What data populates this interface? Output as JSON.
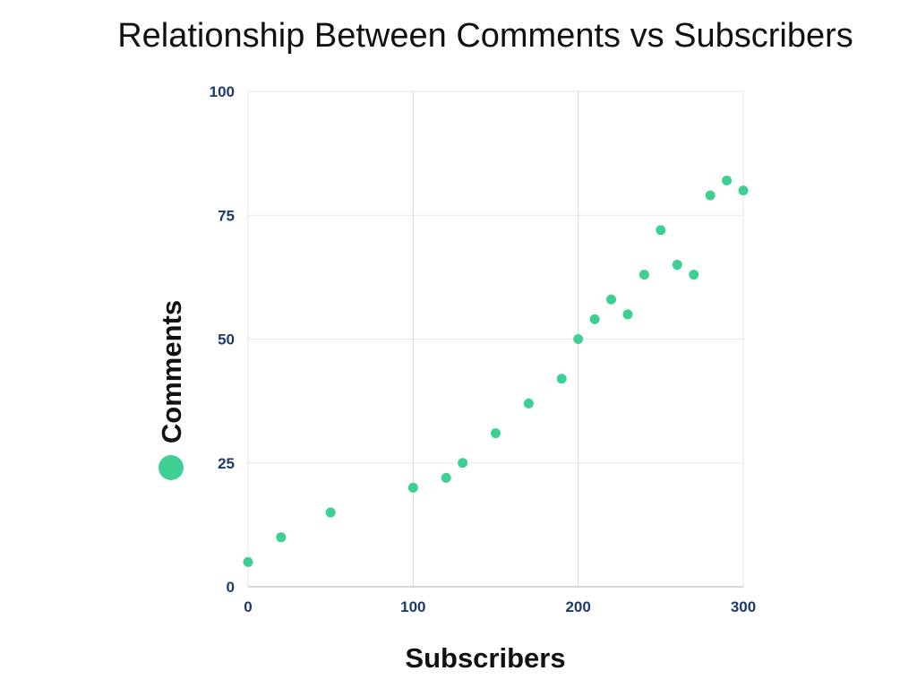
{
  "chart_data": {
    "type": "scatter",
    "title": "Relationship Between Comments vs Subscribers",
    "xlabel": "Subscribers",
    "ylabel": "Comments",
    "xlim": [
      0,
      300
    ],
    "ylim": [
      0,
      100
    ],
    "xticks": [
      "0",
      "100",
      "200",
      "300"
    ],
    "yticks": [
      "0",
      "25",
      "50",
      "75",
      "100"
    ],
    "grid": true,
    "legend_position": "left",
    "series": [
      {
        "name": "Comments",
        "color": "#3ecf94",
        "points": [
          {
            "x": 0,
            "y": 5
          },
          {
            "x": 20,
            "y": 10
          },
          {
            "x": 50,
            "y": 15
          },
          {
            "x": 100,
            "y": 20
          },
          {
            "x": 120,
            "y": 22
          },
          {
            "x": 130,
            "y": 25
          },
          {
            "x": 150,
            "y": 31
          },
          {
            "x": 170,
            "y": 37
          },
          {
            "x": 190,
            "y": 42
          },
          {
            "x": 200,
            "y": 50
          },
          {
            "x": 210,
            "y": 54
          },
          {
            "x": 220,
            "y": 58
          },
          {
            "x": 230,
            "y": 55
          },
          {
            "x": 240,
            "y": 63
          },
          {
            "x": 250,
            "y": 72
          },
          {
            "x": 260,
            "y": 65
          },
          {
            "x": 270,
            "y": 63
          },
          {
            "x": 280,
            "y": 79
          },
          {
            "x": 290,
            "y": 82
          },
          {
            "x": 300,
            "y": 80
          }
        ]
      }
    ],
    "colors": {
      "tick_label": "#1c3a6e",
      "grid": "#e4e6ea",
      "grid_major": "#d2d5da",
      "axis": "#c8ccd2",
      "text": "#111111"
    }
  }
}
